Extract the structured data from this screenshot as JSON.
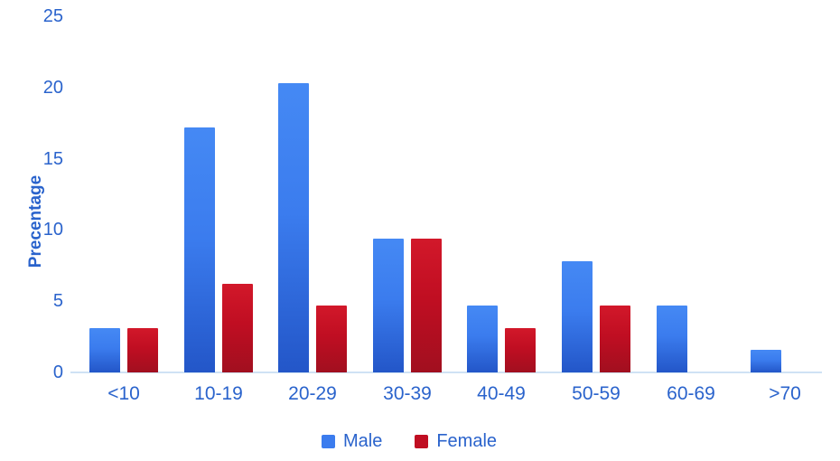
{
  "chart_data": {
    "type": "bar",
    "title": "",
    "xlabel": "",
    "ylabel": "Precentage",
    "categories": [
      "<10",
      "10-19",
      "20-29",
      "30-39",
      "40-49",
      "50-59",
      "60-69",
      ">70"
    ],
    "series": [
      {
        "name": "Male",
        "color": "#3b7cee",
        "color_top": "#4589f4",
        "color_bottom": "#2356c8",
        "values": [
          3.1,
          17.2,
          20.3,
          9.4,
          4.7,
          7.8,
          4.7,
          1.6
        ]
      },
      {
        "name": "Female",
        "color": "#c00e22",
        "color_top": "#d2182a",
        "color_bottom": "#a10f1f",
        "values": [
          3.1,
          6.2,
          4.7,
          9.4,
          3.1,
          4.7,
          0,
          0
        ]
      }
    ],
    "ylim": [
      0,
      25
    ],
    "yticks": [
      0,
      5,
      10,
      15,
      20,
      25
    ],
    "grid": false,
    "legend_position": "bottom",
    "axis_text_color": "#2a63cc",
    "baseline_color": "#cfe2f4"
  }
}
